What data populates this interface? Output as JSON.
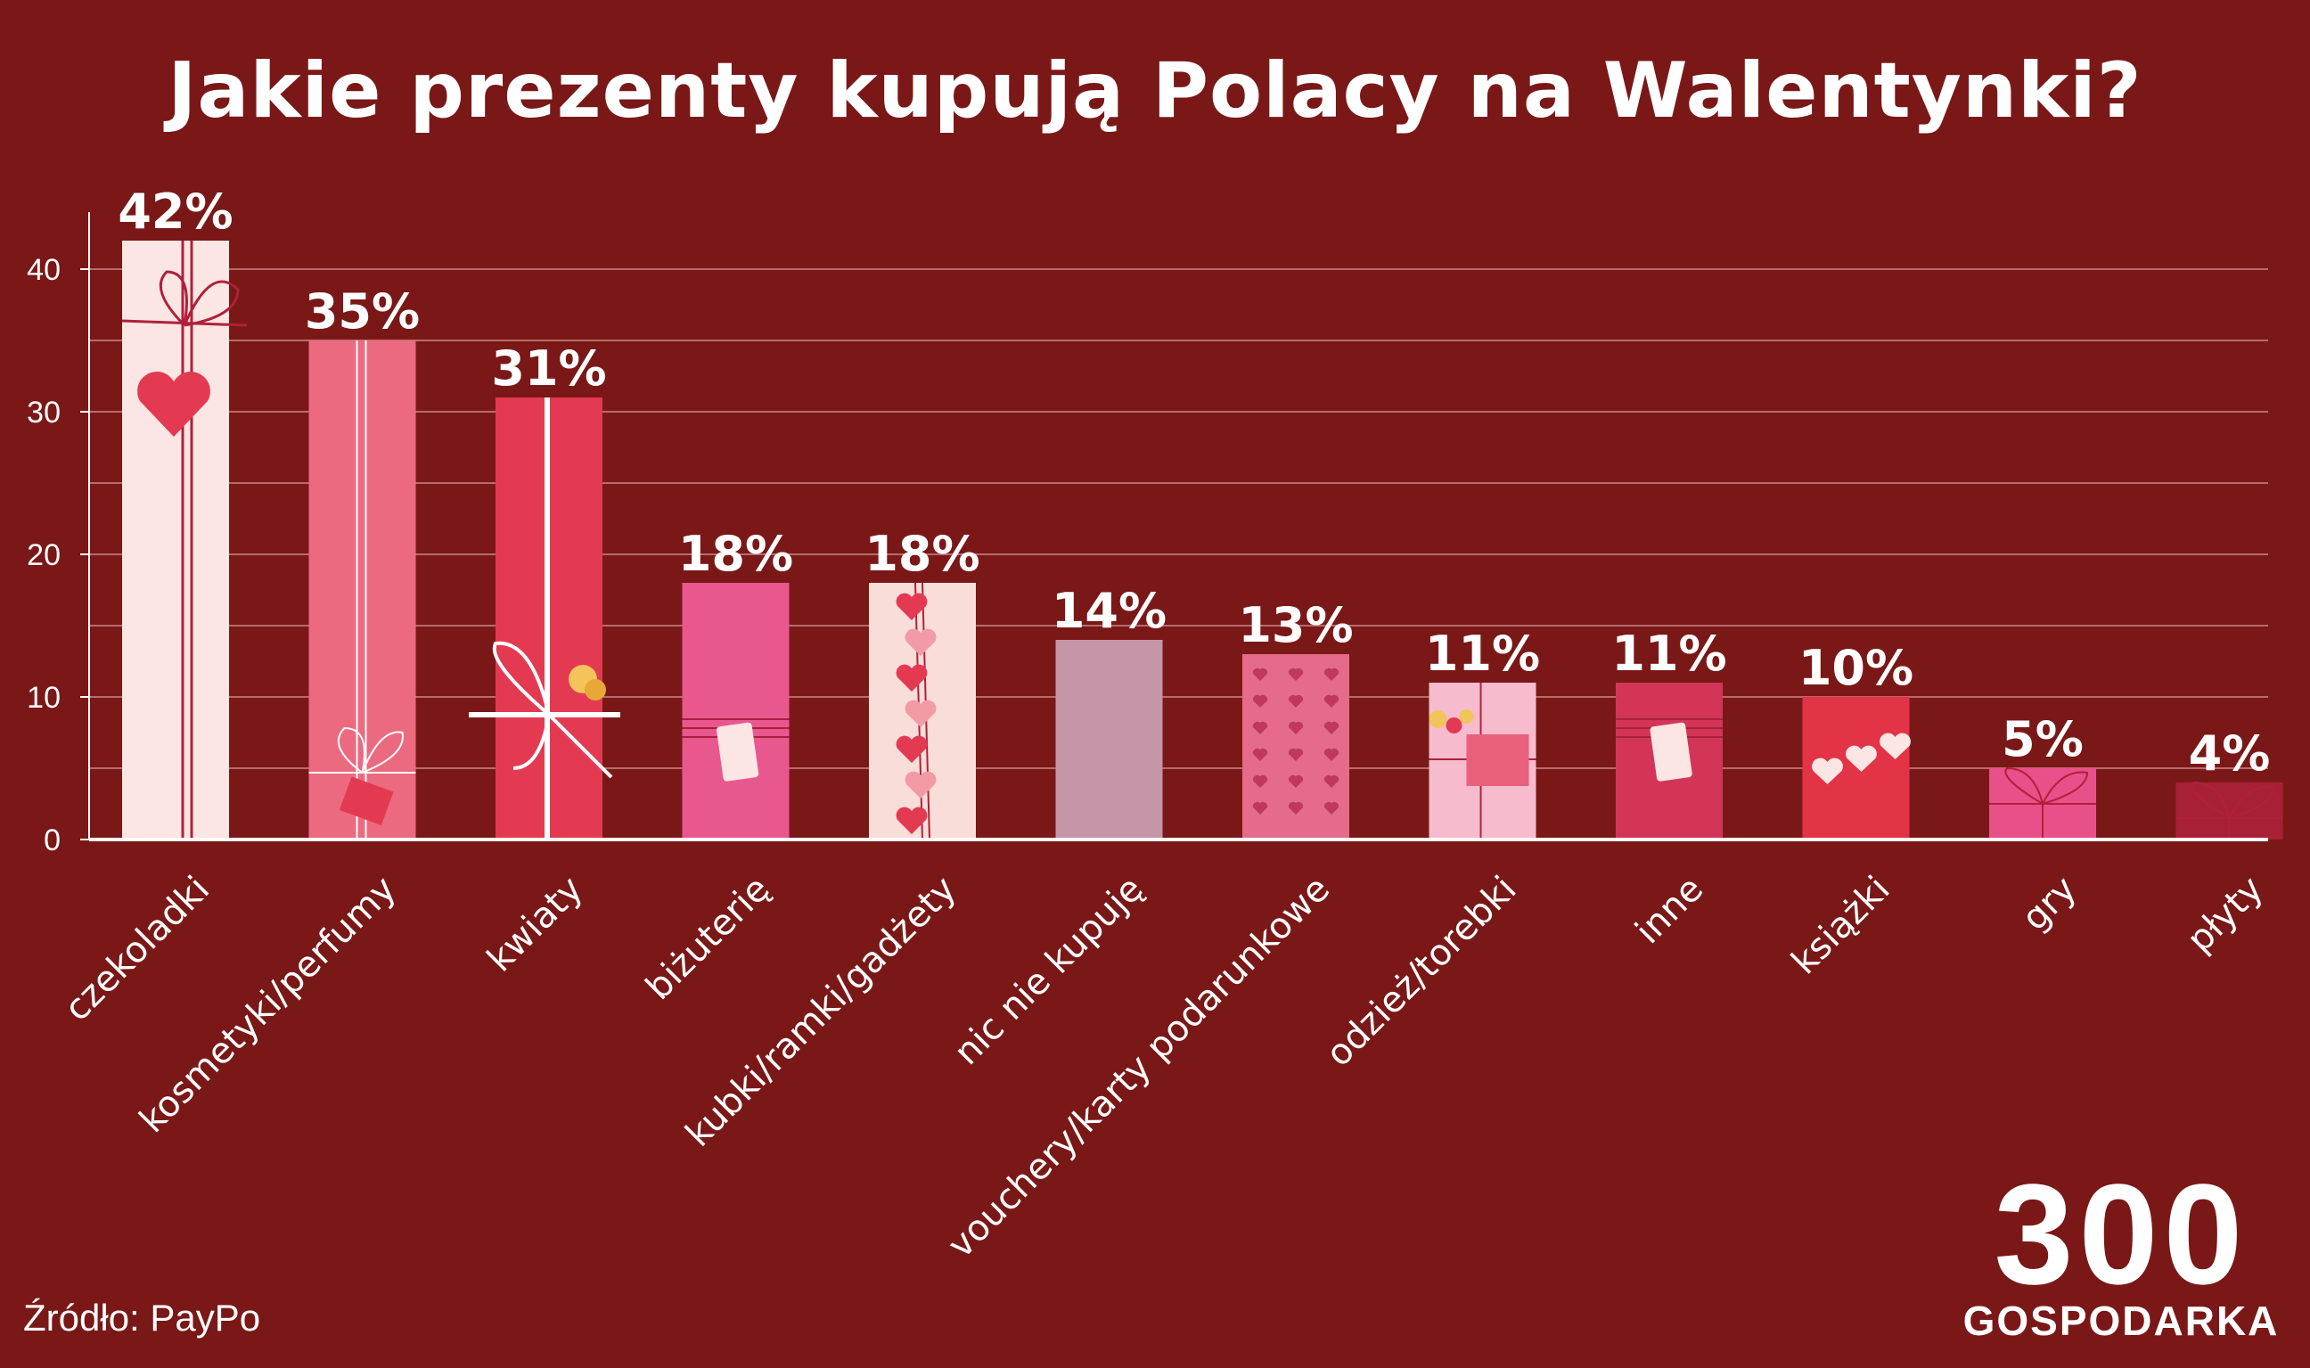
{
  "colors": {
    "background": "#7a1818",
    "text": "#ffffff",
    "grid": "#b86b6b"
  },
  "chart_data": {
    "type": "bar",
    "title": "Jakie prezenty kupują Polacy na Walentynki?",
    "xlabel": "",
    "ylabel": "",
    "ylim": [
      0,
      45
    ],
    "yticks": [
      "0",
      "10",
      "20",
      "30",
      "40"
    ],
    "grid": true,
    "categories": [
      "czekoladki",
      "kosmetyki/perfumy",
      "kwiaty",
      "biżuterię",
      "kubki/ramki/gadżety",
      "nic nie kupuję",
      "vouchery/karty podarunkowe",
      "odzież/torebki",
      "inne",
      "książki",
      "gry",
      "płyty"
    ],
    "values": [
      42,
      35,
      31,
      18,
      18,
      14,
      13,
      11,
      11,
      10,
      5,
      4
    ],
    "value_labels": [
      "42%",
      "35%",
      "31%",
      "18%",
      "18%",
      "14%",
      "13%",
      "11%",
      "11%",
      "10%",
      "5%",
      "4%"
    ],
    "bar_colors": [
      "#fbe6e3",
      "#ec6a80",
      "#e33a52",
      "#e9578f",
      "#f8ddd8",
      "#c596a8",
      "#e46b8a",
      "#f6bccd",
      "#d23558",
      "#e23347",
      "#e8508a",
      "#a82035"
    ],
    "decorations": [
      "ribbon-heart",
      "ribbon-bow-tag",
      "ribbon-bow-flower",
      "ribbon-tag",
      "heart-chain",
      "none",
      "heart-pattern",
      "flowers-card",
      "ribbon-tag",
      "hearts-row",
      "ribbon-bow",
      "ribbon-bow"
    ]
  },
  "source": {
    "text": "Źródło: PayPo"
  },
  "logo": {
    "number": "300",
    "word": "GOSPODARKA"
  }
}
